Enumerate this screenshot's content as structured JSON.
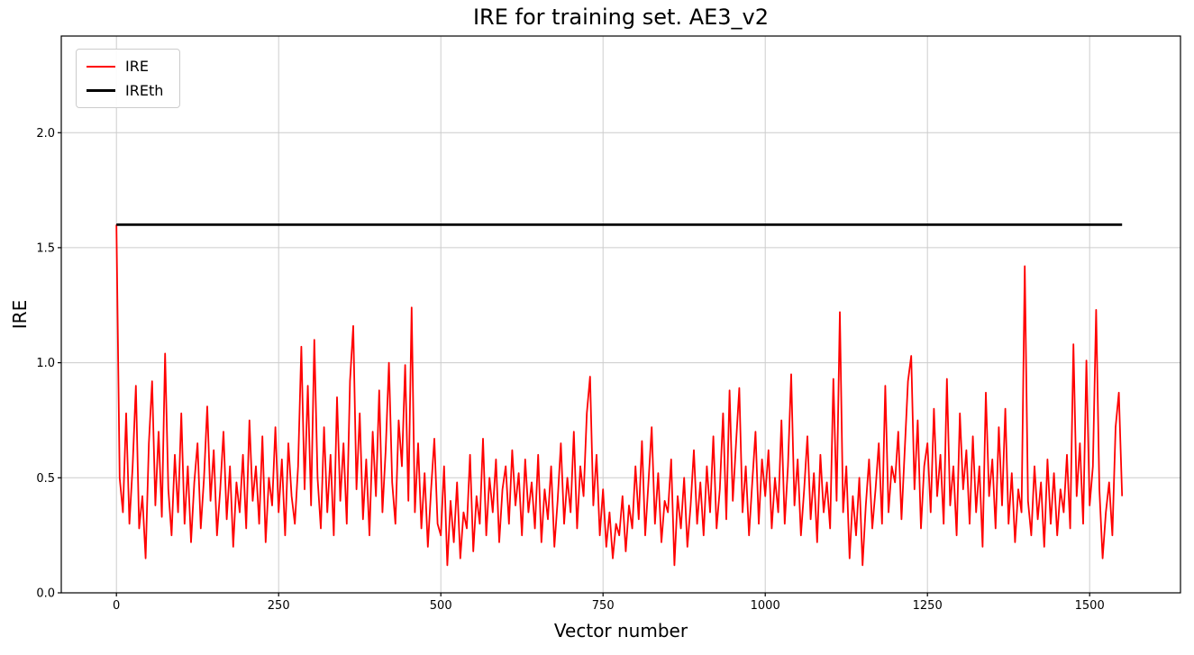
{
  "chart_data": {
    "type": "line",
    "title": "IRE for training set. AE3_v2",
    "xlabel": "Vector number",
    "ylabel": "IRE",
    "xlim": [
      -85,
      1640
    ],
    "ylim": [
      0,
      2.42
    ],
    "xticks": [
      0,
      250,
      500,
      750,
      1000,
      1250,
      1500
    ],
    "xtick_labels": [
      "0",
      "250",
      "500",
      "750",
      "1000",
      "1250",
      "1500"
    ],
    "yticks": [
      0.0,
      0.5,
      1.0,
      1.5,
      2.0
    ],
    "ytick_labels": [
      "0.0",
      "0.5",
      "1.0",
      "1.5",
      "2.0"
    ],
    "grid": true,
    "grid_color": "#cccccc",
    "legend_position": "upper left",
    "series": [
      {
        "name": "IRE",
        "color": "#ff0000",
        "linewidth": 1.8,
        "x_start": 0,
        "x_step": 5,
        "values": [
          1.6,
          0.5,
          0.35,
          0.78,
          0.3,
          0.55,
          0.9,
          0.28,
          0.42,
          0.15,
          0.65,
          0.92,
          0.38,
          0.7,
          0.33,
          1.04,
          0.45,
          0.25,
          0.6,
          0.35,
          0.78,
          0.3,
          0.55,
          0.22,
          0.48,
          0.65,
          0.28,
          0.5,
          0.81,
          0.4,
          0.62,
          0.25,
          0.45,
          0.7,
          0.32,
          0.55,
          0.2,
          0.48,
          0.35,
          0.6,
          0.28,
          0.75,
          0.4,
          0.55,
          0.3,
          0.68,
          0.22,
          0.5,
          0.38,
          0.72,
          0.35,
          0.58,
          0.25,
          0.65,
          0.42,
          0.3,
          0.55,
          1.07,
          0.45,
          0.9,
          0.38,
          1.1,
          0.5,
          0.28,
          0.72,
          0.35,
          0.6,
          0.25,
          0.85,
          0.4,
          0.65,
          0.3,
          0.92,
          1.16,
          0.45,
          0.78,
          0.32,
          0.58,
          0.25,
          0.7,
          0.42,
          0.88,
          0.35,
          0.62,
          1.0,
          0.48,
          0.3,
          0.75,
          0.55,
          0.99,
          0.4,
          1.24,
          0.35,
          0.65,
          0.28,
          0.52,
          0.2,
          0.45,
          0.67,
          0.3,
          0.25,
          0.55,
          0.12,
          0.4,
          0.22,
          0.48,
          0.15,
          0.35,
          0.28,
          0.6,
          0.18,
          0.42,
          0.3,
          0.67,
          0.25,
          0.5,
          0.35,
          0.58,
          0.22,
          0.45,
          0.55,
          0.3,
          0.62,
          0.38,
          0.52,
          0.25,
          0.58,
          0.35,
          0.48,
          0.28,
          0.6,
          0.22,
          0.45,
          0.32,
          0.55,
          0.2,
          0.4,
          0.65,
          0.3,
          0.5,
          0.35,
          0.7,
          0.28,
          0.55,
          0.42,
          0.78,
          0.94,
          0.38,
          0.6,
          0.25,
          0.45,
          0.2,
          0.35,
          0.15,
          0.3,
          0.25,
          0.42,
          0.18,
          0.38,
          0.28,
          0.55,
          0.32,
          0.66,
          0.25,
          0.48,
          0.72,
          0.3,
          0.52,
          0.22,
          0.4,
          0.35,
          0.58,
          0.12,
          0.42,
          0.28,
          0.5,
          0.2,
          0.38,
          0.62,
          0.3,
          0.48,
          0.25,
          0.55,
          0.35,
          0.68,
          0.28,
          0.45,
          0.78,
          0.32,
          0.88,
          0.4,
          0.65,
          0.89,
          0.35,
          0.55,
          0.25,
          0.48,
          0.7,
          0.3,
          0.58,
          0.42,
          0.62,
          0.28,
          0.5,
          0.35,
          0.75,
          0.3,
          0.55,
          0.95,
          0.38,
          0.58,
          0.25,
          0.45,
          0.68,
          0.32,
          0.52,
          0.22,
          0.6,
          0.35,
          0.48,
          0.28,
          0.93,
          0.4,
          1.22,
          0.35,
          0.55,
          0.15,
          0.42,
          0.25,
          0.5,
          0.12,
          0.38,
          0.58,
          0.28,
          0.45,
          0.65,
          0.3,
          0.9,
          0.35,
          0.55,
          0.48,
          0.7,
          0.32,
          0.62,
          0.92,
          1.03,
          0.45,
          0.75,
          0.28,
          0.55,
          0.65,
          0.35,
          0.8,
          0.42,
          0.6,
          0.3,
          0.93,
          0.38,
          0.55,
          0.25,
          0.78,
          0.45,
          0.62,
          0.3,
          0.68,
          0.35,
          0.55,
          0.2,
          0.87,
          0.42,
          0.58,
          0.28,
          0.72,
          0.38,
          0.8,
          0.3,
          0.52,
          0.22,
          0.45,
          0.35,
          1.42,
          0.4,
          0.25,
          0.55,
          0.32,
          0.48,
          0.2,
          0.58,
          0.3,
          0.52,
          0.25,
          0.45,
          0.35,
          0.6,
          0.28,
          1.08,
          0.42,
          0.65,
          0.3,
          1.01,
          0.38,
          0.55,
          1.23,
          0.45,
          0.15,
          0.35,
          0.48,
          0.25,
          0.72,
          0.87,
          0.42
        ]
      },
      {
        "name": "IREth",
        "color": "#000000",
        "linewidth": 2.8,
        "style": "hline",
        "value": 1.6,
        "x_range": [
          0,
          1550
        ]
      }
    ]
  }
}
